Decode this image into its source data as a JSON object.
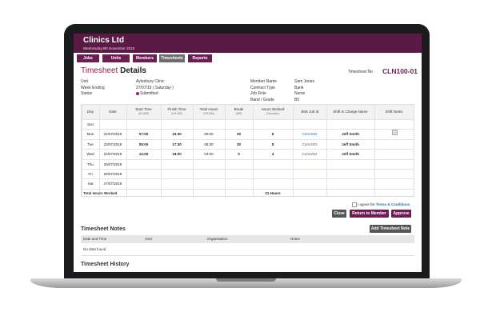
{
  "header": {
    "company": "Clinics Ltd",
    "date": "Wednesday,6th November 2019"
  },
  "nav": [
    "Jobs",
    "Units",
    "Members",
    "Timesheets",
    "Reports"
  ],
  "title": {
    "part1": "Timesheet",
    "part2": "Details",
    "number_label": "Timesheet No",
    "number": "CLN100-01"
  },
  "info_left": [
    [
      "Unit",
      "Aylesbury Clinic"
    ],
    [
      "Week Ending",
      "27/07/19 ( Saturday )"
    ],
    [
      "Status",
      "Submitted"
    ]
  ],
  "info_right": [
    [
      "Member Name",
      "Sam Jones"
    ],
    [
      "Contract Type",
      "Bank"
    ],
    [
      "Job Role",
      "Nurse"
    ],
    [
      "Band / Grade",
      "B5"
    ]
  ],
  "table": {
    "headers": [
      [
        "Day"
      ],
      [
        "Date"
      ],
      [
        "Start Time",
        "(HH:MM)"
      ],
      [
        "Finish Time",
        "(HH:MM)"
      ],
      [
        "Total Hours",
        "(HH:MM)"
      ],
      [
        "Break",
        "(MM)"
      ],
      [
        "Hours Worked",
        "(Decimals)"
      ],
      [
        "JMS Job Id"
      ],
      [
        "Shift In Charge Name"
      ],
      [
        "Shift Notes"
      ]
    ],
    "rows": [
      [
        "Sun",
        null,
        null,
        null,
        null,
        null,
        null,
        null,
        null,
        null
      ],
      [
        "Mon",
        "22/07/2019",
        "07:00",
        "16:30",
        "09:30",
        30,
        9,
        "CLN1002",
        "Jeff Smith",
        null
      ],
      [
        "Tue",
        "23/07/2019",
        "09:00",
        "17:30",
        "08:30",
        30,
        8,
        "CLN1003",
        "Jeff Smith",
        null
      ],
      [
        "Wed",
        "24/07/2019",
        "14:00",
        "18:00",
        "04:00",
        0,
        4,
        "CLN1004",
        "Jeff Smith",
        null
      ],
      [
        "Thu",
        "25/07/2019",
        null,
        null,
        null,
        null,
        null,
        null,
        null,
        null
      ],
      [
        "Fri",
        "26/07/2019",
        null,
        null,
        null,
        null,
        null,
        null,
        null,
        null
      ],
      [
        "Sat",
        "27/07/2019",
        null,
        null,
        null,
        null,
        null,
        null,
        null,
        null
      ]
    ],
    "total_label": "Total Hours Worked",
    "total_value": "21 Hours"
  },
  "agree": {
    "text": "I agree the",
    "link": "Terms & Conditions"
  },
  "buttons": {
    "close": "Close",
    "return": "Return to Member",
    "approve": "Approve"
  },
  "notes": {
    "title": "Timesheet Notes",
    "add": "Add Timesheet Note",
    "headers": [
      "Date and Time",
      "User",
      "Organisation",
      "Notes"
    ],
    "empty": "No data found"
  },
  "history": {
    "title": "Timesheet History"
  }
}
